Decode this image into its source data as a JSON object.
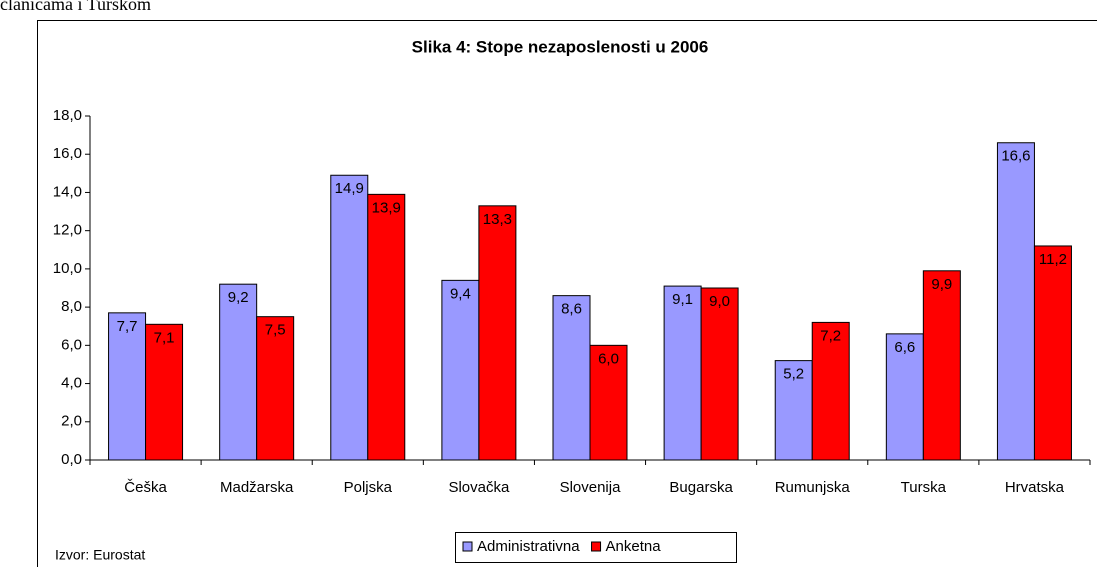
{
  "page_text": "članicama i Turskom",
  "chart_data": {
    "type": "bar",
    "title": "Slika 4: Stope nezaposlenosti u 2006",
    "source": "Izvor: Eurostat",
    "categories": [
      "Češka",
      "Madžarska",
      "Poljska",
      "Slovačka",
      "Slovenija",
      "Bugarska",
      "Rumunjska",
      "Turska",
      "Hrvatska"
    ],
    "series": [
      {
        "name": "Administrativna",
        "color": "#9999ff",
        "values": [
          7.7,
          9.2,
          14.9,
          9.4,
          8.6,
          9.1,
          5.2,
          6.6,
          16.6
        ],
        "value_labels": [
          "7,7",
          "9,2",
          "14,9",
          "9,4",
          "8,6",
          "9,1",
          "5,2",
          "6,6",
          "16,6"
        ]
      },
      {
        "name": "Anketna",
        "color": "#ff0000",
        "values": [
          7.1,
          7.5,
          13.9,
          13.3,
          6.0,
          9.0,
          7.2,
          9.9,
          11.2
        ],
        "value_labels": [
          "7,1",
          "7,5",
          "13,9",
          "13,3",
          "6,0",
          "9,0",
          "7,2",
          "9,9",
          "11,2"
        ]
      }
    ],
    "ylim": [
      0,
      18
    ],
    "yticks": [
      {
        "value": 0,
        "label": "0,0"
      },
      {
        "value": 2,
        "label": "2,0"
      },
      {
        "value": 4,
        "label": "4,0"
      },
      {
        "value": 6,
        "label": "6,0"
      },
      {
        "value": 8,
        "label": "8,0"
      },
      {
        "value": 10,
        "label": "10,0"
      },
      {
        "value": 12,
        "label": "12,0"
      },
      {
        "value": 14,
        "label": "14,0"
      },
      {
        "value": 16,
        "label": "16,0"
      },
      {
        "value": 18,
        "label": "18,0"
      }
    ],
    "grid": false,
    "legend": "bottom"
  }
}
